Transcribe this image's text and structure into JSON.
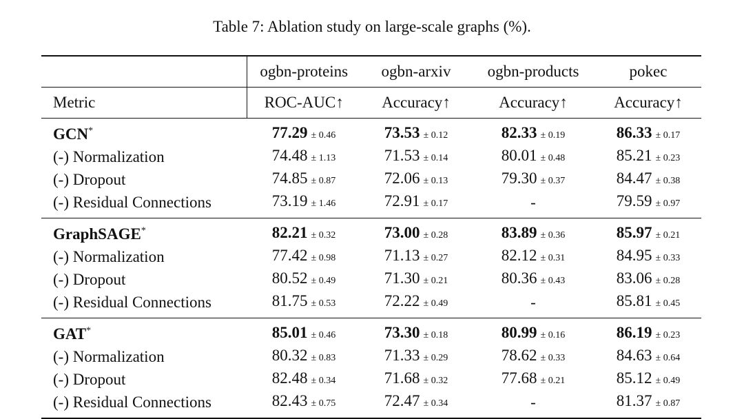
{
  "caption": "Table 7: Ablation study on large-scale graphs (%).",
  "datasets": [
    "ogbn-proteins",
    "ogbn-arxiv",
    "ogbn-products",
    "pokec"
  ],
  "metric_label": "Metric",
  "metrics": [
    "ROC-AUC↑",
    "Accuracy↑",
    "Accuracy↑",
    "Accuracy↑"
  ],
  "groups": [
    {
      "model": "GCN",
      "marker": "*",
      "rows": [
        {
          "label": "GCN",
          "cells": [
            {
              "v": "77.29",
              "s": "± 0.46",
              "best": true
            },
            {
              "v": "73.53",
              "s": "± 0.12",
              "best": true
            },
            {
              "v": "82.33",
              "s": "± 0.19",
              "best": true
            },
            {
              "v": "86.33",
              "s": "± 0.17",
              "best": true
            }
          ]
        },
        {
          "label": "(-) Normalization",
          "cells": [
            {
              "v": "74.48",
              "s": "± 1.13"
            },
            {
              "v": "71.53",
              "s": "± 0.14"
            },
            {
              "v": "80.01",
              "s": "± 0.48"
            },
            {
              "v": "85.21",
              "s": "± 0.23"
            }
          ]
        },
        {
          "label": "(-) Dropout",
          "cells": [
            {
              "v": "74.85",
              "s": "± 0.87"
            },
            {
              "v": "72.06",
              "s": "± 0.13"
            },
            {
              "v": "79.30",
              "s": "± 0.37"
            },
            {
              "v": "84.47",
              "s": "± 0.38"
            }
          ]
        },
        {
          "label": "(-) Residual Connections",
          "cells": [
            {
              "v": "73.19",
              "s": "± 1.46"
            },
            {
              "v": "72.91",
              "s": "± 0.17"
            },
            {
              "v": "-",
              "s": ""
            },
            {
              "v": "79.59",
              "s": "± 0.97"
            }
          ]
        }
      ]
    },
    {
      "model": "GraphSAGE",
      "marker": "*",
      "rows": [
        {
          "label": "GraphSAGE",
          "cells": [
            {
              "v": "82.21",
              "s": "± 0.32",
              "best": true
            },
            {
              "v": "73.00",
              "s": "± 0.28",
              "best": true
            },
            {
              "v": "83.89",
              "s": "± 0.36",
              "best": true
            },
            {
              "v": "85.97",
              "s": "± 0.21",
              "best": true
            }
          ]
        },
        {
          "label": "(-) Normalization",
          "cells": [
            {
              "v": "77.42",
              "s": "± 0.98"
            },
            {
              "v": "71.13",
              "s": "± 0.27"
            },
            {
              "v": "82.12",
              "s": "± 0.31"
            },
            {
              "v": "84.95",
              "s": "± 0.33"
            }
          ]
        },
        {
          "label": "(-) Dropout",
          "cells": [
            {
              "v": "80.52",
              "s": "± 0.49"
            },
            {
              "v": "71.30",
              "s": "± 0.21"
            },
            {
              "v": "80.36",
              "s": "± 0.43"
            },
            {
              "v": "83.06",
              "s": "± 0.28"
            }
          ]
        },
        {
          "label": "(-) Residual Connections",
          "cells": [
            {
              "v": "81.75",
              "s": "± 0.53"
            },
            {
              "v": "72.22",
              "s": "± 0.49"
            },
            {
              "v": "-",
              "s": ""
            },
            {
              "v": "85.81",
              "s": "± 0.45"
            }
          ]
        }
      ]
    },
    {
      "model": "GAT",
      "marker": "*",
      "rows": [
        {
          "label": "GAT",
          "cells": [
            {
              "v": "85.01",
              "s": "± 0.46",
              "best": true
            },
            {
              "v": "73.30",
              "s": "± 0.18",
              "best": true
            },
            {
              "v": "80.99",
              "s": "± 0.16",
              "best": true
            },
            {
              "v": "86.19",
              "s": "± 0.23",
              "best": true
            }
          ]
        },
        {
          "label": "(-) Normalization",
          "cells": [
            {
              "v": "80.32",
              "s": "± 0.83"
            },
            {
              "v": "71.33",
              "s": "± 0.29"
            },
            {
              "v": "78.62",
              "s": "± 0.33"
            },
            {
              "v": "84.63",
              "s": "± 0.64"
            }
          ]
        },
        {
          "label": "(-) Dropout",
          "cells": [
            {
              "v": "82.48",
              "s": "± 0.34"
            },
            {
              "v": "71.68",
              "s": "± 0.32"
            },
            {
              "v": "77.68",
              "s": "± 0.21"
            },
            {
              "v": "85.12",
              "s": "± 0.49"
            }
          ]
        },
        {
          "label": "(-) Residual Connections",
          "cells": [
            {
              "v": "82.43",
              "s": "± 0.75"
            },
            {
              "v": "72.47",
              "s": "± 0.34"
            },
            {
              "v": "-",
              "s": ""
            },
            {
              "v": "81.37",
              "s": "± 0.87"
            }
          ]
        }
      ]
    }
  ]
}
